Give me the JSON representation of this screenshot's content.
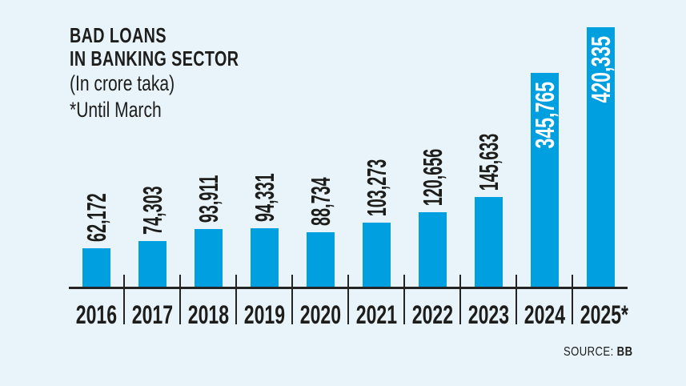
{
  "header": {
    "line1": "BAD LOANS",
    "line2": "IN BANKING SECTOR",
    "unit": "(In crore taka)",
    "note": "*Until March"
  },
  "source": {
    "label": "SOURCE: ",
    "value": "BB"
  },
  "chart_data": {
    "type": "bar",
    "title": "BAD LOANS IN BANKING SECTOR",
    "unit": "In crore taka",
    "note": "*Until March",
    "source": "BB",
    "categories": [
      "2016",
      "2017",
      "2018",
      "2019",
      "2020",
      "2021",
      "2022",
      "2023",
      "2024",
      "2025*"
    ],
    "values": [
      62172,
      74303,
      93911,
      94331,
      88734,
      103273,
      120656,
      145633,
      345765,
      420335
    ],
    "value_labels": [
      "62,172",
      "74,303",
      "93,911",
      "94,331",
      "88,734",
      "103,273",
      "120,656",
      "145,633",
      "345,765",
      "420,335"
    ],
    "xlabel": "",
    "ylabel": "",
    "ylim": [
      0,
      430000
    ],
    "grid": false,
    "legend": false,
    "value_label_rotation": 90,
    "bar_color": "#009fe0",
    "background_color": "#e9f4fa",
    "axis_color": "#242424",
    "label_color_outside": "#1d1d1b",
    "label_color_inside": "#ffffff"
  }
}
